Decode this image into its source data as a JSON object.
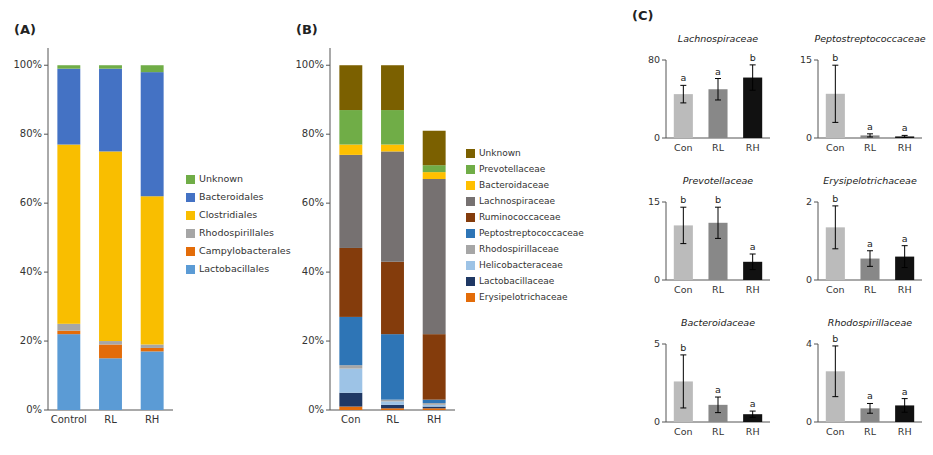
{
  "chart_data": [
    {
      "type": "bar",
      "stacked": true,
      "title": "(A)",
      "categories": [
        "Control",
        "RL",
        "RH"
      ],
      "series": [
        {
          "name": "Lactobacillales",
          "color": "#5B9BD5",
          "values": [
            0.22,
            0.15,
            0.17
          ]
        },
        {
          "name": "Campylobacterales",
          "color": "#E36C09",
          "values": [
            0.01,
            0.04,
            0.01
          ]
        },
        {
          "name": "Rhodospirillales",
          "color": "#A6A6A6",
          "values": [
            0.02,
            0.01,
            0.01
          ]
        },
        {
          "name": "Clostridiales",
          "color": "#F9BE00",
          "values": [
            0.52,
            0.55,
            0.43
          ]
        },
        {
          "name": "Bacteroidales",
          "color": "#4472C4",
          "values": [
            0.22,
            0.24,
            0.36
          ]
        },
        {
          "name": "Unknown",
          "color": "#70AD47",
          "values": [
            0.01,
            0.01,
            0.02
          ]
        }
      ],
      "ylim": [
        0,
        1.05
      ],
      "yticks": [
        {
          "value": 0,
          "label": "0%"
        },
        {
          "value": 0.2,
          "label": "20%"
        },
        {
          "value": 0.4,
          "label": "40%"
        },
        {
          "value": 0.6,
          "label": "60%"
        },
        {
          "value": 0.8,
          "label": "80%"
        },
        {
          "value": 1.0,
          "label": "100%"
        }
      ],
      "grid": false
    },
    {
      "type": "bar",
      "stacked": true,
      "title": "(B)",
      "categories": [
        "Con",
        "RL",
        "RH"
      ],
      "series": [
        {
          "name": "Erysipelotrichaceae",
          "color": "#E36C09",
          "values": [
            0.01,
            0.005,
            0.005
          ]
        },
        {
          "name": "Lactobacillaceae",
          "color": "#1F3864",
          "values": [
            0.04,
            0.01,
            0.005
          ]
        },
        {
          "name": "Helicobacteraceae",
          "color": "#9DC3E6",
          "values": [
            0.07,
            0.01,
            0.005
          ]
        },
        {
          "name": "Rhodospirillaceae",
          "color": "#A6A6A6",
          "values": [
            0.01,
            0.005,
            0.005
          ]
        },
        {
          "name": "Peptostreptococcaceae",
          "color": "#2E75B6",
          "values": [
            0.14,
            0.19,
            0.01
          ]
        },
        {
          "name": "Ruminococcaceae",
          "color": "#843C0C",
          "values": [
            0.2,
            0.21,
            0.19
          ]
        },
        {
          "name": "Lachnospiraceae",
          "color": "#767171",
          "values": [
            0.27,
            0.32,
            0.45
          ]
        },
        {
          "name": "Bacteroidaceae",
          "color": "#FFC000",
          "values": [
            0.03,
            0.02,
            0.02
          ]
        },
        {
          "name": "Prevotellaceae",
          "color": "#70AD47",
          "values": [
            0.1,
            0.1,
            0.02
          ]
        },
        {
          "name": "Unknown",
          "color": "#7B6000",
          "values": [
            0.13,
            0.13,
            0.1
          ]
        }
      ],
      "ylim": [
        0,
        1.05
      ],
      "yticks": [
        {
          "value": 0,
          "label": "0%"
        },
        {
          "value": 0.2,
          "label": "20%"
        },
        {
          "value": 0.4,
          "label": "40%"
        },
        {
          "value": 0.6,
          "label": "60%"
        },
        {
          "value": 0.8,
          "label": "80%"
        },
        {
          "value": 1.0,
          "label": "100%"
        }
      ],
      "grid": false
    },
    {
      "title": "(C)",
      "subplots": [
        {
          "type": "bar",
          "title": "Lachnospiraceae",
          "categories": [
            "Con",
            "RL",
            "RH"
          ],
          "values": [
            45,
            50,
            62
          ],
          "errors": [
            9,
            11,
            13
          ],
          "annotations": [
            "a",
            "a",
            "b"
          ],
          "colors": [
            "#BBBBBB",
            "#888888",
            "#111111"
          ],
          "ylim": [
            0,
            80
          ],
          "yticks": [
            0,
            80
          ],
          "grid": false
        },
        {
          "type": "bar",
          "title": "Peptostreptococcaceae",
          "categories": [
            "Con",
            "RL",
            "RH"
          ],
          "values": [
            8.5,
            0.5,
            0.3
          ],
          "errors": [
            5.5,
            0.3,
            0.2
          ],
          "annotations": [
            "b",
            "a",
            "a"
          ],
          "colors": [
            "#BBBBBB",
            "#888888",
            "#111111"
          ],
          "ylim": [
            0,
            15
          ],
          "yticks": [
            0,
            15
          ],
          "grid": false
        },
        {
          "type": "bar",
          "title": "Prevotellaceae",
          "categories": [
            "Con",
            "RL",
            "RH"
          ],
          "values": [
            10.5,
            11.0,
            3.5
          ],
          "errors": [
            3.5,
            3.0,
            1.5
          ],
          "annotations": [
            "b",
            "b",
            "a"
          ],
          "colors": [
            "#BBBBBB",
            "#888888",
            "#111111"
          ],
          "ylim": [
            0,
            15
          ],
          "yticks": [
            0,
            15
          ],
          "grid": false
        },
        {
          "type": "bar",
          "title": "Erysipelotrichaceae",
          "categories": [
            "Con",
            "RL",
            "RH"
          ],
          "values": [
            1.35,
            0.55,
            0.6
          ],
          "errors": [
            0.55,
            0.2,
            0.28
          ],
          "annotations": [
            "b",
            "a",
            "a"
          ],
          "colors": [
            "#BBBBBB",
            "#888888",
            "#111111"
          ],
          "ylim": [
            0,
            2
          ],
          "yticks": [
            0,
            2
          ],
          "grid": false
        },
        {
          "type": "bar",
          "title": "Bacteroidaceae",
          "categories": [
            "Con",
            "RL",
            "RH"
          ],
          "values": [
            2.6,
            1.1,
            0.5
          ],
          "errors": [
            1.7,
            0.5,
            0.2
          ],
          "annotations": [
            "b",
            "a",
            "a"
          ],
          "colors": [
            "#BBBBBB",
            "#888888",
            "#111111"
          ],
          "ylim": [
            0,
            5
          ],
          "yticks": [
            0,
            5
          ],
          "grid": false
        },
        {
          "type": "bar",
          "title": "Rhodospirillaceae",
          "categories": [
            "Con",
            "RL",
            "RH"
          ],
          "values": [
            2.6,
            0.7,
            0.85
          ],
          "errors": [
            1.3,
            0.25,
            0.35
          ],
          "annotations": [
            "b",
            "a",
            "a"
          ],
          "colors": [
            "#BBBBBB",
            "#888888",
            "#111111"
          ],
          "ylim": [
            0,
            4
          ],
          "yticks": [
            0,
            4
          ],
          "grid": false
        }
      ]
    }
  ]
}
